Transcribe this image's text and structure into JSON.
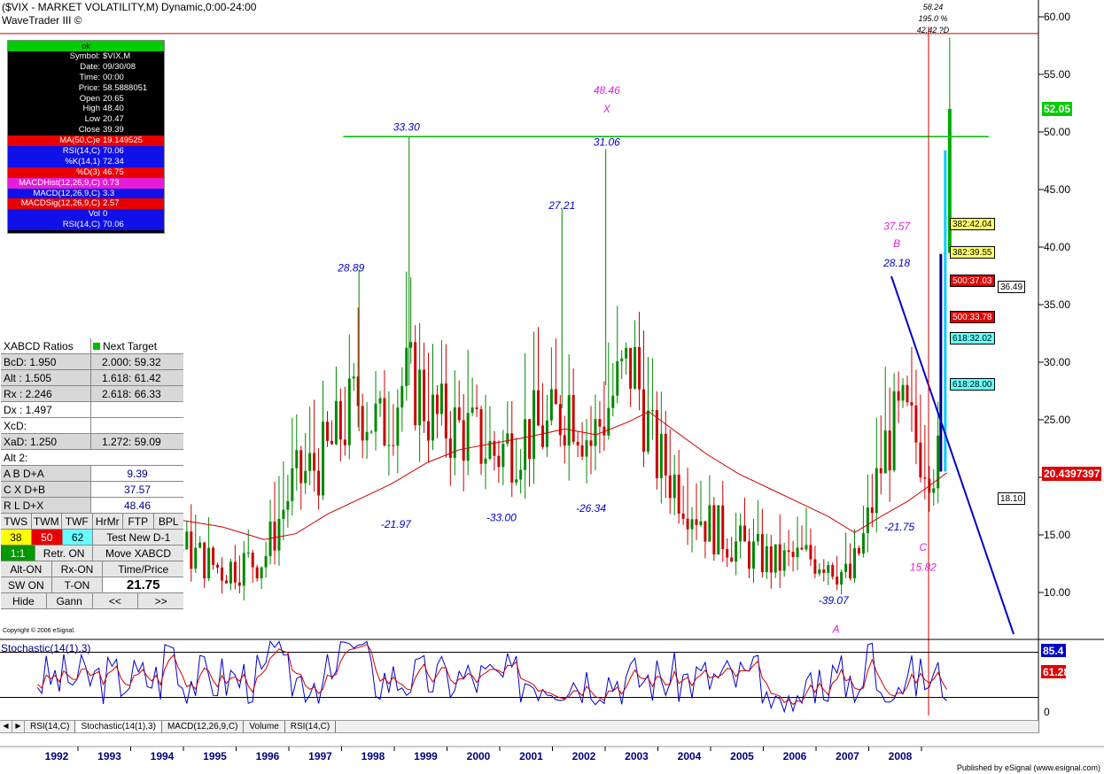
{
  "header": {
    "title": "($VIX - MARKET VOLATILITY,M) Dynamic,0:00-24:00",
    "subtitle": "WaveTrader III ©"
  },
  "data_window": {
    "status": "ok",
    "rows": [
      {
        "k": "Symbol:",
        "v": "$VIX,M",
        "style": ""
      },
      {
        "k": "Date:",
        "v": "09/30/08",
        "style": ""
      },
      {
        "k": "Time:",
        "v": "00:00",
        "style": ""
      },
      {
        "k": "Price:",
        "v": "58.5888051",
        "style": ""
      },
      {
        "k": "Open",
        "v": "20.65",
        "style": ""
      },
      {
        "k": "High",
        "v": "48.40",
        "style": ""
      },
      {
        "k": "Low",
        "v": "20.47",
        "style": ""
      },
      {
        "k": "Close",
        "v": "39.39",
        "style": ""
      },
      {
        "k": "MA(50,C)e",
        "v": "19.149525",
        "style": "red"
      },
      {
        "k": "RSI(14,C)",
        "v": "70.06",
        "style": "blue"
      },
      {
        "k": "%K(14,1)",
        "v": "72.34",
        "style": "blue"
      },
      {
        "k": "%D(3)",
        "v": "46.75",
        "style": "red"
      },
      {
        "k": "MACDHist(12,26,9,C)",
        "v": "0.73",
        "style": "pink"
      },
      {
        "k": "MACD(12,26,9,C)",
        "v": "3.3",
        "style": "blue"
      },
      {
        "k": "MACDSig(12,26,9,C)",
        "v": "2.57",
        "style": "red"
      },
      {
        "k": "Vol",
        "v": "0",
        "style": "blue"
      },
      {
        "k": "RSI(14,C)",
        "v": "70.06",
        "style": "blue"
      }
    ]
  },
  "xabcd": {
    "header": {
      "c1": "XABCD Ratios",
      "c2": "Next Target"
    },
    "rows": [
      {
        "c1": "BcD:   1.950",
        "c2": "2.000: 59.32"
      },
      {
        "c1": "Alt  :   1.505",
        "c2": "1.618: 61.42"
      },
      {
        "c1": "Rx  :   2.246",
        "c2": "2.618: 66.33"
      },
      {
        "c1": "Dx  :   1.497",
        "c2": ""
      },
      {
        "c1": "XcD:",
        "c2": ""
      },
      {
        "c1": "XaD:   1.250",
        "c2": "1.272: 59.09"
      }
    ],
    "alt_label": "Alt 2:",
    "levels": [
      {
        "label": "A   B   D+A",
        "value": "9.39"
      },
      {
        "label": "C   X   D+B",
        "value": "37.57"
      },
      {
        "label": "R   L   D+X",
        "value": "48.46"
      }
    ],
    "tf_buttons": [
      "TWS",
      "TWM",
      "TWF",
      "HrMr",
      "FTP",
      "BPL"
    ],
    "num_buttons": [
      "38",
      "50",
      "62",
      "Test New D-1"
    ],
    "retr_buttons": [
      "1:1",
      "Retr. ON",
      "Move XABCD"
    ],
    "alt_buttons": [
      "Alt-ON",
      "Rx-ON",
      "Time/Price"
    ],
    "sw_buttons": [
      "SW ON",
      "T-ON",
      "21.75"
    ],
    "nav_buttons": [
      "Hide",
      "Gann",
      "<<",
      ">>"
    ],
    "copyright": "Copyright © 2006 eSignal."
  },
  "oscillator": {
    "title": "Stochastic(14(1),3)",
    "k_last": "85.4",
    "d_last": "61.28",
    "zero": "0"
  },
  "tabs": [
    "RSI(14,C)",
    "Stochastic(14(1),3)",
    "MACD(12,26,9,C)",
    "Volume",
    "RSI(14,C)"
  ],
  "footer": {
    "published": "Published by eSignal (www.esignal.com)"
  },
  "price_tags": [
    {
      "text": "52.05",
      "bg": "#00cc00",
      "fg": "#ffffff"
    },
    {
      "text": "382:42.04",
      "bg": "#ffff66",
      "fg": "#000000"
    },
    {
      "text": "382:39.55",
      "bg": "#ffff66",
      "fg": "#000000"
    },
    {
      "text": "500:37.03",
      "bg": "#e00000",
      "fg": "#ffffff"
    },
    {
      "text": "36.49",
      "bg": "#ffffff",
      "fg": "#000000"
    },
    {
      "text": "500:33.78",
      "bg": "#e00000",
      "fg": "#ffffff"
    },
    {
      "text": "618:32.02",
      "bg": "#66ffff",
      "fg": "#000000"
    },
    {
      "text": "618:28.00",
      "bg": "#66ffff",
      "fg": "#000000"
    },
    {
      "text": "20.4397397",
      "bg": "#e00000",
      "fg": "#ffffff"
    },
    {
      "text": "18.10",
      "bg": "#ffffff",
      "fg": "#000000"
    }
  ],
  "chart_data": {
    "type": "candlestick",
    "title": "($VIX - MARKET VOLATILITY,M) Dynamic,0:00-24:00",
    "x_ticks": [
      "1992",
      "1993",
      "1994",
      "1995",
      "1996",
      "1997",
      "1998",
      "1999",
      "2000",
      "2001",
      "2002",
      "2003",
      "2004",
      "2005",
      "2006",
      "2007",
      "2008"
    ],
    "x_range": [
      1991.1,
      2009.2
    ],
    "y_ticks": [
      "60.00",
      "55.00",
      "50.00",
      "45.00",
      "40.00",
      "35.00",
      "30.00",
      "25.00",
      "20.00",
      "15.00",
      "10.00"
    ],
    "ylim": [
      5.0,
      61.4
    ],
    "annotations_blue": [
      {
        "text": "28.89",
        "x": 1997.45,
        "y": 37.9
      },
      {
        "text": "33.30",
        "x": 1998.5,
        "y": 50.1
      },
      {
        "text": "-21.97",
        "x": 1998.3,
        "y": 15.6
      },
      {
        "text": "27.21",
        "x": 2001.45,
        "y": 43.3
      },
      {
        "text": "31.06",
        "x": 2002.3,
        "y": 48.8
      },
      {
        "text": "-33.00",
        "x": 2000.3,
        "y": 16.2
      },
      {
        "text": "-26.34",
        "x": 2002.0,
        "y": 17.0
      },
      {
        "text": "28.18",
        "x": 2007.8,
        "y": 38.3
      },
      {
        "text": "-21.75",
        "x": 2007.85,
        "y": 15.4
      },
      {
        "text": "-39.07",
        "x": 2006.6,
        "y": 9.0
      }
    ],
    "annotations_pink": [
      {
        "text": "48.46",
        "x": 2002.3,
        "y": 53.3
      },
      {
        "text": "X",
        "x": 2002.3,
        "y": 51.7
      },
      {
        "text": "37.57",
        "x": 2007.8,
        "y": 41.5
      },
      {
        "text": "B",
        "x": 2007.8,
        "y": 40.0
      },
      {
        "text": "C",
        "x": 2008.3,
        "y": 13.6
      },
      {
        "text": "15.82",
        "x": 2008.3,
        "y": 11.9
      },
      {
        "text": "A",
        "x": 2006.65,
        "y": 6.5
      }
    ],
    "annotations_top": [
      "58.24",
      "195.0 %",
      "42.42 ?D"
    ],
    "lines": {
      "resistance": {
        "y": 49.6,
        "x0": 1997.3,
        "x1": 2009.1
      },
      "high_line": {
        "y": 58.55
      },
      "trendline": {
        "x0": 2007.7,
        "y0": 37.8,
        "x1": 2009.1,
        "y1": 6.0
      }
    },
    "ma_points": [
      [
        1991.7,
        16.9
      ],
      [
        1992.5,
        16.7
      ],
      [
        1993.3,
        16.2
      ],
      [
        1994.2,
        16.3
      ],
      [
        1995.0,
        15.7
      ],
      [
        1995.8,
        14.6
      ],
      [
        1996.4,
        15.1
      ],
      [
        1997.0,
        16.8
      ],
      [
        1997.6,
        18.1
      ],
      [
        1998.2,
        19.4
      ],
      [
        1998.9,
        21.3
      ],
      [
        1999.5,
        22.4
      ],
      [
        2000.2,
        23.0
      ],
      [
        2000.9,
        23.6
      ],
      [
        2001.5,
        24.2
      ],
      [
        2002.1,
        23.7
      ],
      [
        2002.7,
        24.8
      ],
      [
        2003.1,
        25.7
      ],
      [
        2003.6,
        24.0
      ],
      [
        2004.2,
        22.0
      ],
      [
        2004.8,
        20.3
      ],
      [
        2005.4,
        19.0
      ],
      [
        2006.0,
        17.7
      ],
      [
        2006.5,
        16.6
      ],
      [
        2007.0,
        15.2
      ],
      [
        2007.5,
        16.6
      ],
      [
        2008.0,
        17.9
      ],
      [
        2008.4,
        19.2
      ],
      [
        2008.75,
        20.4
      ]
    ],
    "osc_ylim": [
      -5,
      100
    ],
    "osc_levels": [
      80,
      20
    ],
    "series": [
      {
        "name": "$VIX,M"
      }
    ]
  }
}
